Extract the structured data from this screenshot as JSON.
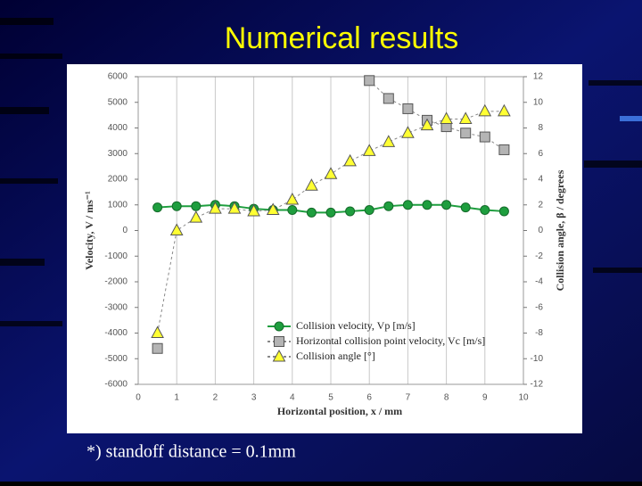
{
  "slide": {
    "title": "Numerical results",
    "note": "*) standoff distance = 0.1mm"
  },
  "chart_data": {
    "type": "line",
    "x_label": "Horizontal  position,  x / mm",
    "y_label": "Velocity,  V / ms⁻¹",
    "y2_label": "Collision  angle,  β / degrees",
    "x": [
      0.5,
      1,
      1.5,
      2,
      2.5,
      3,
      3.5,
      4,
      4.5,
      5,
      5.5,
      6,
      6.5,
      7,
      7.5,
      8,
      8.5,
      9,
      9.5
    ],
    "xlim": [
      0,
      10
    ],
    "xticks": [
      0,
      1,
      2,
      3,
      4,
      5,
      6,
      7,
      8,
      9,
      10
    ],
    "ylim": [
      -6000,
      6000
    ],
    "yticks": [
      -6000,
      -5000,
      -4000,
      -3000,
      -2000,
      -1000,
      0,
      1000,
      2000,
      3000,
      4000,
      5000,
      6000
    ],
    "y2lim": [
      -12,
      12
    ],
    "y2ticks": [
      -12,
      -10,
      -8,
      -6,
      -4,
      -2,
      0,
      2,
      4,
      6,
      8,
      10,
      12
    ],
    "grid": "x",
    "legend": "lower right",
    "series": [
      {
        "name": "Collision velocity, Vp [m/s]",
        "color": "#1e9e3e",
        "marker": "circle",
        "line": "solid",
        "values": [
          900,
          950,
          950,
          1000,
          950,
          850,
          800,
          800,
          700,
          700,
          750,
          800,
          950,
          1000,
          1000,
          1000,
          900,
          800,
          750
        ]
      },
      {
        "name": "Horizontal collision point velocity, Vc [m/s]",
        "color": "#b4b4b4",
        "marker": "square",
        "line": "dashed",
        "values": [
          -4600,
          null,
          null,
          null,
          null,
          null,
          null,
          null,
          null,
          null,
          null,
          5850,
          5150,
          4750,
          4300,
          4050,
          3800,
          3650,
          3150
        ]
      },
      {
        "name": "Collision angle [°]",
        "color": "#ffff33",
        "marker": "triangle",
        "line": "dashed",
        "axis": "y2",
        "values": [
          -8,
          0,
          1,
          1.7,
          1.7,
          1.5,
          1.6,
          2.4,
          3.5,
          4.4,
          5.4,
          6.2,
          6.9,
          7.6,
          8.2,
          8.7,
          8.7,
          9.3,
          9.3
        ]
      }
    ]
  }
}
